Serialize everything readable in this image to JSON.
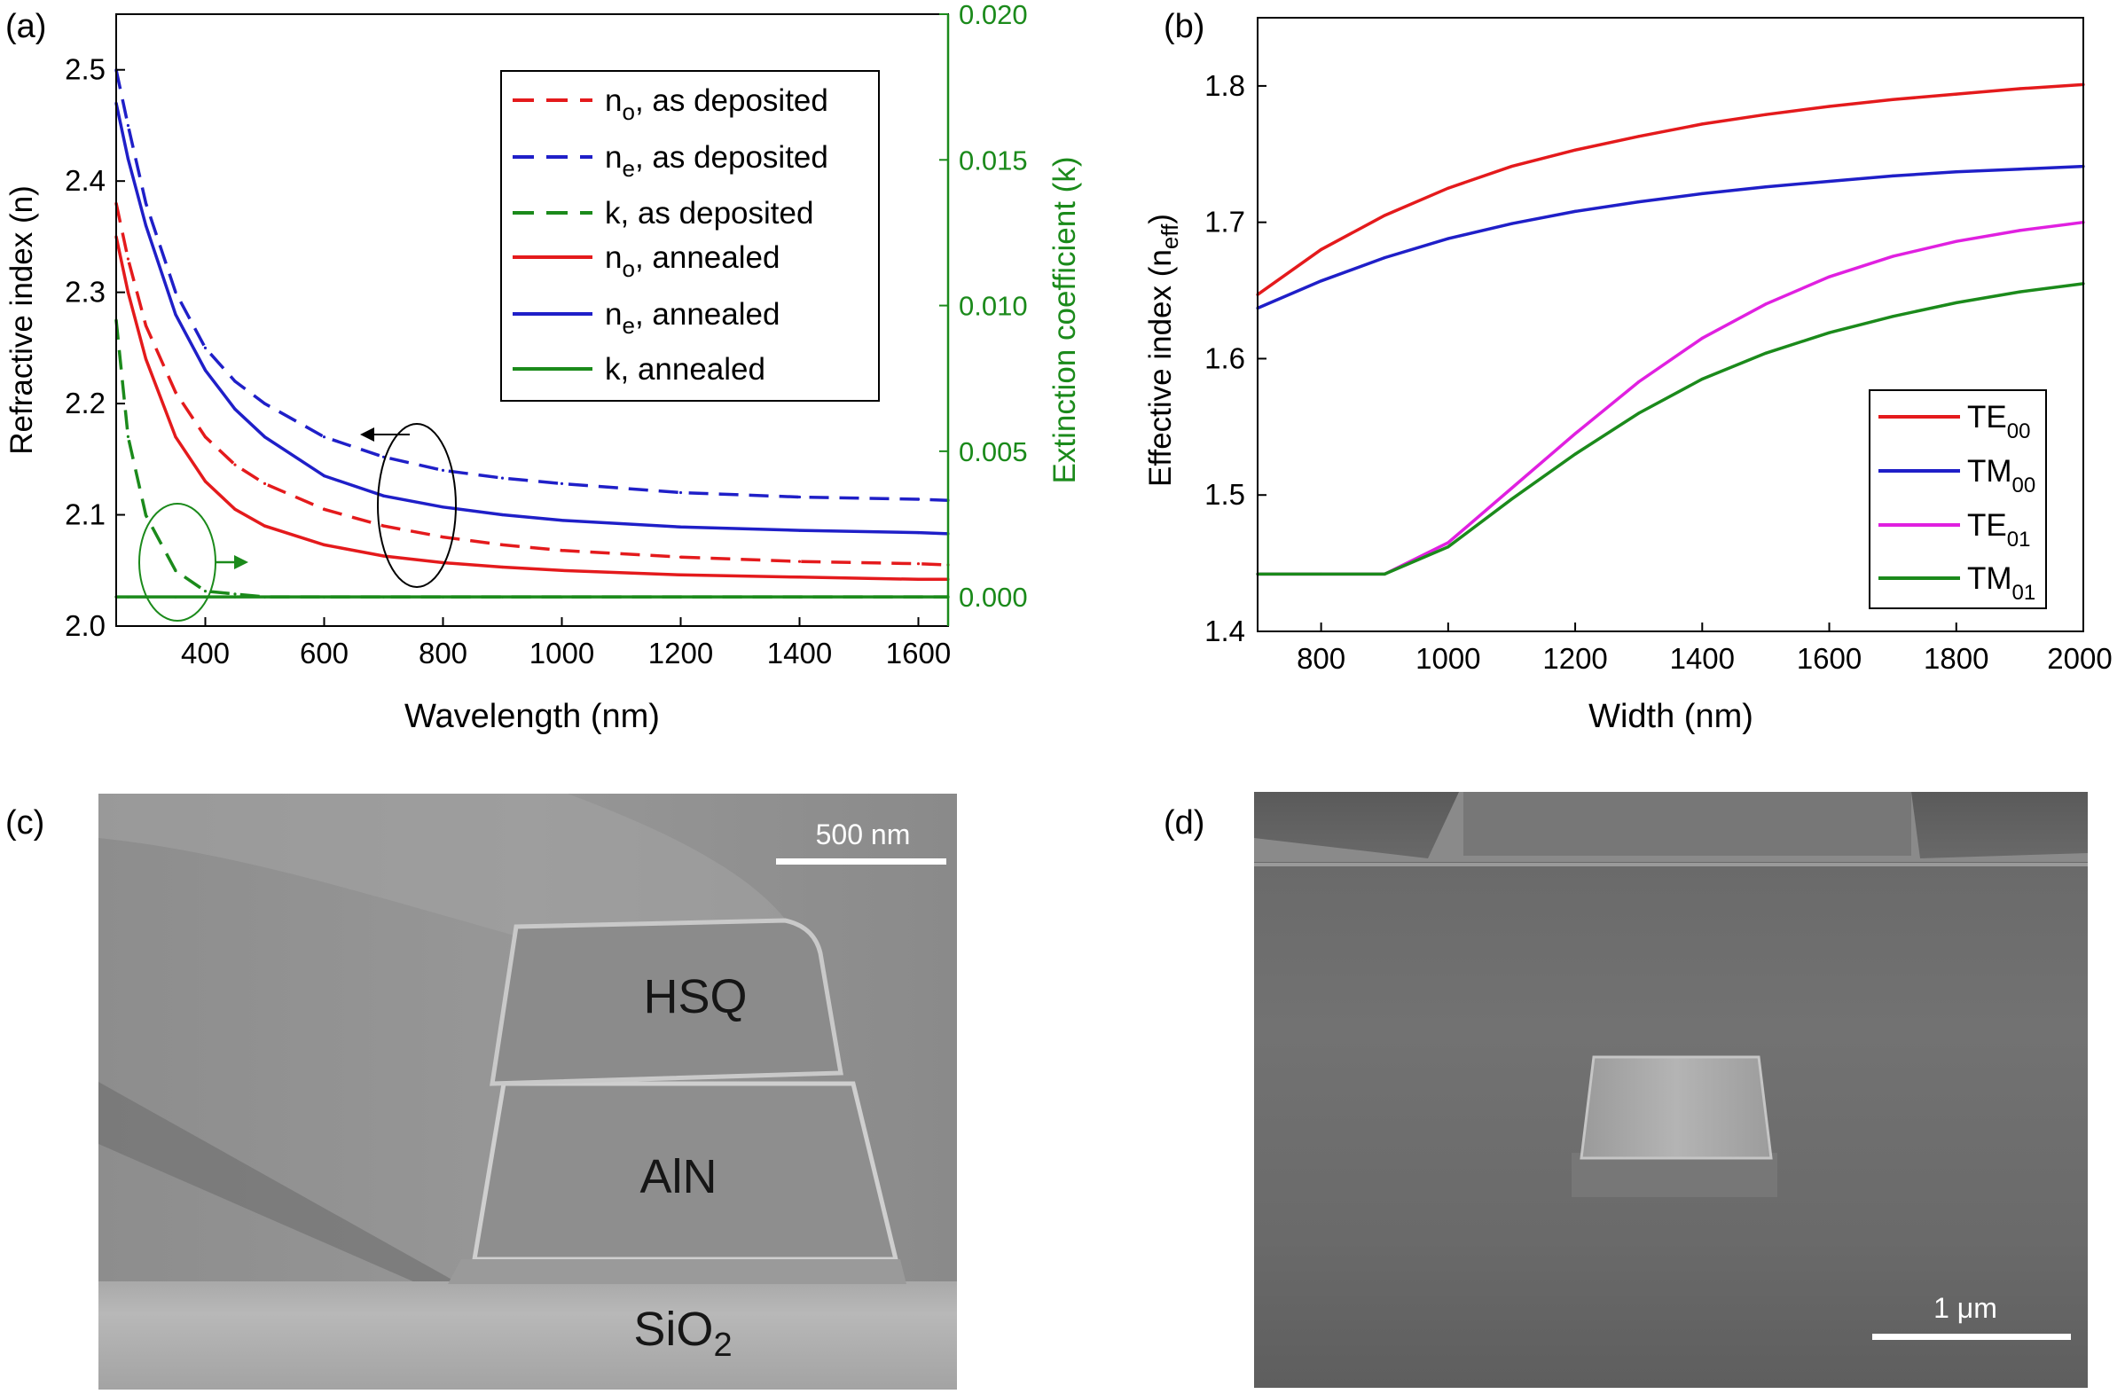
{
  "colors": {
    "red": "#e41a1c",
    "blue": "#1f1fc8",
    "green": "#1b8a1b",
    "magenta": "#e020e0",
    "axis": "#000000"
  },
  "panels": {
    "a": {
      "label": "(a)"
    },
    "b": {
      "label": "(b)"
    },
    "c": {
      "label": "(c)",
      "hsq": "HSQ",
      "aln": "AlN",
      "sio2": "SiO",
      "sio2_sub": "2",
      "scalebar": "500 nm"
    },
    "d": {
      "label": "(d)",
      "scalebar": "1 μm"
    }
  },
  "chart_data": [
    {
      "type": "line",
      "xlabel": "Wavelength (nm)",
      "ylabel": "Refractive index (n)",
      "y2label": "Extinction coefficient (k)",
      "xlim": [
        250,
        1650
      ],
      "ylim": [
        2.0,
        2.55
      ],
      "y2lim": [
        -0.001,
        0.02
      ],
      "xticks": [
        "400",
        "600",
        "800",
        "1000",
        "1200",
        "1400",
        "1600"
      ],
      "yticks": [
        "2.0",
        "2.1",
        "2.2",
        "2.3",
        "2.4",
        "2.5"
      ],
      "y2ticks": [
        "0.000",
        "0.005",
        "0.010",
        "0.015",
        "0.020"
      ],
      "legend_position": "top-right",
      "legend": [
        {
          "base": "n",
          "sub": "o",
          "rest": ", as deposited"
        },
        {
          "base": "n",
          "sub": "e",
          "rest": ", as deposited"
        },
        {
          "base": "k",
          "sub": "",
          "rest": ", as deposited"
        },
        {
          "base": "n",
          "sub": "o",
          "rest": ", annealed"
        },
        {
          "base": "n",
          "sub": "e",
          "rest": ", annealed"
        },
        {
          "base": "k",
          "sub": "",
          "rest": ", annealed"
        }
      ],
      "x": [
        250,
        270,
        300,
        350,
        400,
        450,
        500,
        600,
        700,
        800,
        900,
        1000,
        1200,
        1400,
        1600,
        1650
      ],
      "series": [
        {
          "key": "no-as-deposited",
          "axis": "left",
          "dashed": true,
          "color": "red",
          "values": [
            2.38,
            2.33,
            2.27,
            2.21,
            2.17,
            2.145,
            2.128,
            2.105,
            2.09,
            2.08,
            2.073,
            2.068,
            2.062,
            2.058,
            2.056,
            2.055
          ]
        },
        {
          "key": "ne-as-deposited",
          "axis": "left",
          "dashed": true,
          "color": "blue",
          "values": [
            2.5,
            2.45,
            2.38,
            2.3,
            2.25,
            2.22,
            2.2,
            2.17,
            2.152,
            2.14,
            2.133,
            2.128,
            2.12,
            2.116,
            2.114,
            2.113
          ]
        },
        {
          "key": "k-as-deposited",
          "axis": "right",
          "dashed": true,
          "color": "green",
          "values": [
            0.0095,
            0.0055,
            0.0028,
            0.0009,
            0.0002,
            0.0001,
            0.0,
            0.0,
            0.0,
            0.0,
            0.0,
            0.0,
            0.0,
            0.0,
            0.0,
            0.0
          ]
        },
        {
          "key": "no-annealed",
          "axis": "left",
          "dashed": false,
          "color": "red",
          "values": [
            2.35,
            2.3,
            2.24,
            2.17,
            2.13,
            2.105,
            2.09,
            2.073,
            2.063,
            2.057,
            2.053,
            2.05,
            2.046,
            2.044,
            2.042,
            2.042
          ]
        },
        {
          "key": "ne-annealed",
          "axis": "left",
          "dashed": false,
          "color": "blue",
          "values": [
            2.47,
            2.42,
            2.36,
            2.28,
            2.23,
            2.195,
            2.17,
            2.135,
            2.117,
            2.107,
            2.1,
            2.095,
            2.089,
            2.086,
            2.084,
            2.083
          ]
        },
        {
          "key": "k-annealed",
          "axis": "right",
          "dashed": false,
          "color": "green",
          "values": [
            0.0,
            0.0,
            0.0,
            0.0,
            0.0,
            0.0,
            0.0,
            0.0,
            0.0,
            0.0,
            0.0,
            0.0,
            0.0,
            0.0,
            0.0,
            0.0
          ]
        }
      ]
    },
    {
      "type": "line",
      "xlabel": "Width (nm)",
      "ylabel_base": "Effective index (n",
      "ylabel_sub": "eff",
      "ylabel_tail": ")",
      "xlim": [
        700,
        2000
      ],
      "ylim": [
        1.4,
        1.85
      ],
      "xticks": [
        "800",
        "1000",
        "1200",
        "1400",
        "1600",
        "1800",
        "2000"
      ],
      "yticks": [
        "1.4",
        "1.5",
        "1.6",
        "1.7",
        "1.8"
      ],
      "legend_position": "bottom-right",
      "legend": [
        {
          "base": "TE",
          "sub": "00"
        },
        {
          "base": "TM",
          "sub": "00"
        },
        {
          "base": "TE",
          "sub": "01"
        },
        {
          "base": "TM",
          "sub": "01"
        }
      ],
      "x": [
        700,
        800,
        900,
        1000,
        1100,
        1200,
        1300,
        1400,
        1500,
        1600,
        1700,
        1800,
        1900,
        2000
      ],
      "series": [
        {
          "key": "te00",
          "color": "red",
          "values": [
            1.647,
            1.68,
            1.705,
            1.725,
            1.741,
            1.753,
            1.763,
            1.772,
            1.779,
            1.785,
            1.79,
            1.794,
            1.798,
            1.801
          ]
        },
        {
          "key": "tm00",
          "color": "blue",
          "values": [
            1.637,
            1.657,
            1.674,
            1.688,
            1.699,
            1.708,
            1.715,
            1.721,
            1.726,
            1.73,
            1.734,
            1.737,
            1.739,
            1.741
          ]
        },
        {
          "key": "te01",
          "color": "magenta",
          "values": [
            1.442,
            1.442,
            1.442,
            1.465,
            1.505,
            1.545,
            1.583,
            1.615,
            1.64,
            1.66,
            1.675,
            1.686,
            1.694,
            1.7
          ]
        },
        {
          "key": "tm01",
          "color": "green",
          "values": [
            1.442,
            1.442,
            1.442,
            1.462,
            1.497,
            1.53,
            1.56,
            1.585,
            1.604,
            1.619,
            1.631,
            1.641,
            1.649,
            1.655
          ]
        }
      ]
    }
  ]
}
